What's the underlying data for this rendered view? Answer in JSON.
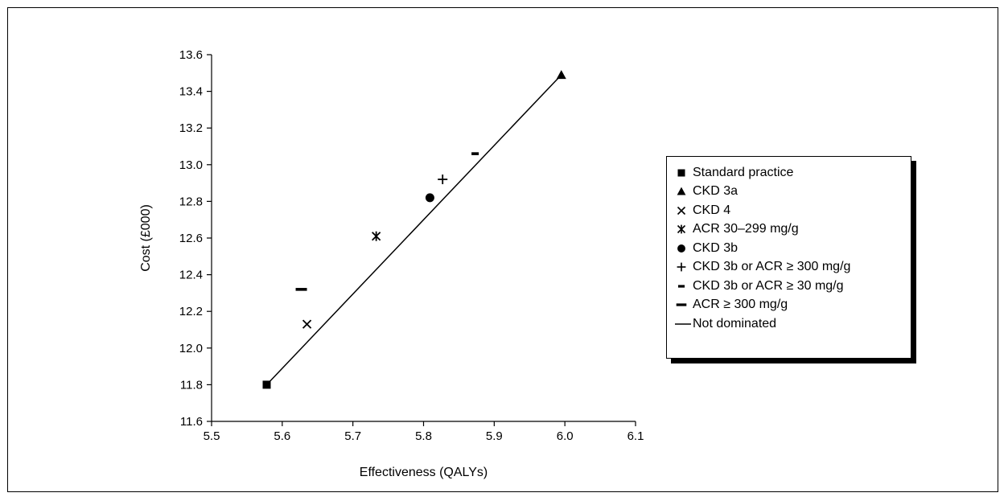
{
  "chart_data": {
    "type": "scatter",
    "xlabel": "Effectiveness (QALYs)",
    "ylabel": "Cost (£000)",
    "xlim": [
      5.5,
      6.1
    ],
    "ylim": [
      11.6,
      13.6
    ],
    "x_ticks": [
      "5.5",
      "5.6",
      "5.7",
      "5.8",
      "5.9",
      "6.0",
      "6.1"
    ],
    "y_ticks": [
      "11.6",
      "11.8",
      "12.0",
      "12.2",
      "12.4",
      "12.6",
      "12.8",
      "13.0",
      "13.2",
      "13.4",
      "13.6"
    ],
    "grid": false,
    "legend_position": "right",
    "series": [
      {
        "name": "Standard practice",
        "marker": "square",
        "x": 5.578,
        "y": 11.8
      },
      {
        "name": "CKD 3a",
        "marker": "triangle",
        "x": 5.995,
        "y": 13.49
      },
      {
        "name": "CKD 4",
        "marker": "x",
        "x": 5.635,
        "y": 12.13
      },
      {
        "name": "ACR 30–299 mg/g",
        "marker": "asterisk",
        "x": 5.733,
        "y": 12.61
      },
      {
        "name": "CKD 3b",
        "marker": "circle",
        "x": 5.809,
        "y": 12.82
      },
      {
        "name": "CKD 3b or ACR ≥ 300 mg/g",
        "marker": "plus",
        "x": 5.827,
        "y": 12.92
      },
      {
        "name": "CKD 3b or ACR ≥ 30 mg/g",
        "marker": "short-dash",
        "x": 5.873,
        "y": 13.06
      },
      {
        "name": "ACR ≥ 300 mg/g",
        "marker": "long-dash",
        "x": 5.627,
        "y": 12.32
      }
    ],
    "lines": [
      {
        "name": "Not dominated",
        "x": [
          5.578,
          5.995
        ],
        "y": [
          11.8,
          13.49
        ]
      }
    ]
  }
}
